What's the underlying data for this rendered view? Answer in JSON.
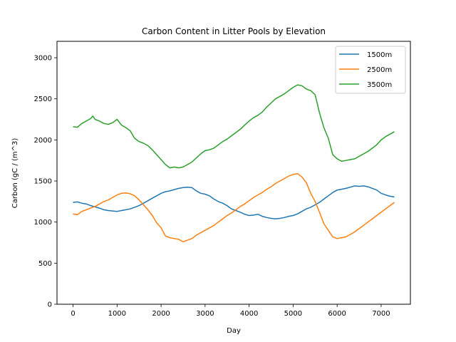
{
  "chart_data": {
    "type": "line",
    "title": "Carbon Content in Litter Pools by Elevation",
    "xlabel": "Day",
    "ylabel": "Carbon (gC / (m^3)",
    "xlim": [
      -365,
      7665
    ],
    "ylim": [
      0,
      3200
    ],
    "xticks": [
      0,
      1000,
      2000,
      3000,
      4000,
      5000,
      6000,
      7000
    ],
    "yticks": [
      0,
      500,
      1000,
      1500,
      2000,
      2500,
      3000
    ],
    "grid": false,
    "legend_position": "upper right",
    "series": [
      {
        "name": "1500m",
        "color": "#1f77b4",
        "x": [
          0,
          100,
          200,
          300,
          400,
          500,
          600,
          700,
          800,
          900,
          1000,
          1100,
          1200,
          1300,
          1400,
          1500,
          1600,
          1700,
          1800,
          1900,
          2000,
          2100,
          2200,
          2300,
          2400,
          2500,
          2600,
          2700,
          2800,
          2900,
          3000,
          3100,
          3200,
          3300,
          3400,
          3500,
          3600,
          3700,
          3800,
          3900,
          4000,
          4100,
          4200,
          4300,
          4400,
          4500,
          4600,
          4700,
          4800,
          4900,
          5000,
          5100,
          5200,
          5300,
          5400,
          5500,
          5600,
          5700,
          5800,
          5900,
          6000,
          6100,
          6200,
          6300,
          6400,
          6500,
          6600,
          6700,
          6800,
          6900,
          7000,
          7100,
          7200,
          7300
        ],
        "values": [
          1240,
          1245,
          1230,
          1220,
          1200,
          1185,
          1170,
          1150,
          1140,
          1135,
          1130,
          1140,
          1150,
          1160,
          1180,
          1200,
          1230,
          1260,
          1290,
          1320,
          1350,
          1370,
          1380,
          1395,
          1410,
          1420,
          1425,
          1420,
          1380,
          1350,
          1340,
          1320,
          1280,
          1250,
          1230,
          1200,
          1160,
          1140,
          1120,
          1095,
          1080,
          1085,
          1095,
          1070,
          1055,
          1045,
          1040,
          1045,
          1055,
          1070,
          1080,
          1100,
          1130,
          1160,
          1180,
          1210,
          1240,
          1280,
          1320,
          1360,
          1390,
          1400,
          1410,
          1425,
          1440,
          1435,
          1440,
          1430,
          1410,
          1390,
          1350,
          1330,
          1315,
          1305
        ]
      },
      {
        "name": "2500m",
        "color": "#ff7f0e",
        "x": [
          0,
          100,
          200,
          300,
          400,
          500,
          600,
          700,
          800,
          900,
          1000,
          1100,
          1200,
          1300,
          1400,
          1500,
          1600,
          1700,
          1800,
          1900,
          2000,
          2100,
          2200,
          2300,
          2400,
          2500,
          2600,
          2700,
          2800,
          2900,
          3000,
          3100,
          3200,
          3300,
          3400,
          3500,
          3600,
          3700,
          3800,
          3900,
          4000,
          4100,
          4200,
          4300,
          4400,
          4500,
          4600,
          4700,
          4800,
          4900,
          5000,
          5100,
          5200,
          5300,
          5400,
          5500,
          5600,
          5700,
          5800,
          5900,
          6000,
          6100,
          6200,
          6300,
          6400,
          6500,
          6600,
          6700,
          6800,
          6900,
          7000,
          7100,
          7200,
          7300
        ],
        "values": [
          1100,
          1090,
          1130,
          1150,
          1170,
          1190,
          1220,
          1250,
          1270,
          1300,
          1330,
          1350,
          1355,
          1345,
          1320,
          1270,
          1210,
          1150,
          1080,
          990,
          930,
          830,
          810,
          800,
          790,
          760,
          780,
          800,
          840,
          870,
          900,
          930,
          960,
          1000,
          1040,
          1080,
          1110,
          1150,
          1190,
          1220,
          1260,
          1300,
          1330,
          1360,
          1400,
          1430,
          1470,
          1500,
          1530,
          1560,
          1580,
          1590,
          1550,
          1480,
          1350,
          1250,
          1120,
          980,
          900,
          820,
          800,
          810,
          820,
          850,
          880,
          920,
          960,
          1000,
          1040,
          1080,
          1120,
          1160,
          1200,
          1240
        ]
      },
      {
        "name": "3500m",
        "color": "#2ca02c",
        "x": [
          0,
          100,
          200,
          300,
          400,
          450,
          500,
          600,
          700,
          800,
          900,
          1000,
          1100,
          1200,
          1300,
          1400,
          1500,
          1600,
          1700,
          1800,
          1900,
          2000,
          2100,
          2200,
          2300,
          2400,
          2500,
          2600,
          2700,
          2800,
          2900,
          3000,
          3100,
          3200,
          3300,
          3400,
          3500,
          3600,
          3700,
          3800,
          3900,
          4000,
          4100,
          4200,
          4300,
          4400,
          4500,
          4600,
          4700,
          4800,
          4900,
          5000,
          5100,
          5200,
          5300,
          5400,
          5500,
          5600,
          5700,
          5800,
          5900,
          6000,
          6100,
          6200,
          6300,
          6400,
          6500,
          6600,
          6700,
          6800,
          6900,
          7000,
          7100,
          7200,
          7300
        ],
        "values": [
          2160,
          2155,
          2200,
          2230,
          2260,
          2290,
          2250,
          2230,
          2200,
          2190,
          2210,
          2250,
          2180,
          2150,
          2110,
          2020,
          1980,
          1960,
          1930,
          1880,
          1820,
          1760,
          1700,
          1660,
          1670,
          1660,
          1670,
          1700,
          1730,
          1780,
          1830,
          1870,
          1880,
          1900,
          1940,
          1980,
          2010,
          2050,
          2090,
          2130,
          2180,
          2230,
          2270,
          2300,
          2340,
          2400,
          2450,
          2500,
          2530,
          2560,
          2600,
          2640,
          2670,
          2660,
          2620,
          2600,
          2550,
          2330,
          2150,
          2020,
          1820,
          1770,
          1740,
          1750,
          1760,
          1770,
          1800,
          1830,
          1860,
          1900,
          1940,
          2000,
          2040,
          2070,
          2100
        ]
      }
    ]
  }
}
